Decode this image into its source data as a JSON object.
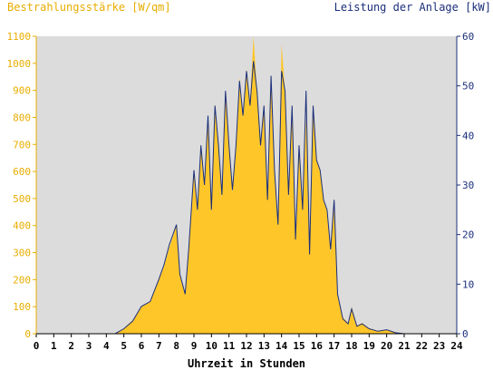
{
  "chart_data": {
    "type": "area",
    "ylabel_left": "Bestrahlungsstärke [W/qm]",
    "ylabel_right": "Leistung der Anlage [kW]",
    "xlabel": "Uhrzeit in Stunden",
    "xlim": [
      0,
      24
    ],
    "ylim_left": [
      0,
      1100
    ],
    "ylim_right": [
      0,
      60
    ],
    "x_ticks": [
      "0",
      "1",
      "2",
      "3",
      "4",
      "5",
      "6",
      "7",
      "8",
      "9",
      "10",
      "11",
      "12",
      "13",
      "14",
      "15",
      "16",
      "17",
      "18",
      "19",
      "20",
      "21",
      "22",
      "23",
      "24"
    ],
    "y_left_ticks": [
      "0",
      "100",
      "200",
      "300",
      "400",
      "500",
      "600",
      "700",
      "800",
      "900",
      "1000",
      "1100"
    ],
    "y_right_ticks": [
      "0",
      "10",
      "20",
      "30",
      "40",
      "50",
      "60"
    ],
    "grid": false,
    "colors": {
      "irradiance": "#ffc629",
      "power": "#1b2f7a",
      "plot_bg": "#dcdcdc",
      "left_axis_text": "#e8ad00",
      "right_axis_text": "#1b2f7a"
    },
    "series": [
      {
        "name": "Bestrahlungsstärke [W/qm]",
        "axis": "left",
        "x": [
          0,
          4.5,
          5.0,
          5.5,
          6.0,
          6.5,
          7.0,
          7.3,
          7.6,
          8.0,
          8.2,
          8.5,
          8.7,
          9.0,
          9.2,
          9.4,
          9.6,
          9.8,
          10.0,
          10.2,
          10.4,
          10.6,
          10.8,
          11.0,
          11.2,
          11.4,
          11.6,
          11.8,
          12.0,
          12.2,
          12.4,
          12.6,
          12.8,
          13.0,
          13.2,
          13.4,
          13.6,
          13.8,
          14.0,
          14.2,
          14.4,
          14.6,
          14.8,
          15.0,
          15.2,
          15.4,
          15.6,
          15.8,
          16.0,
          16.2,
          16.4,
          16.6,
          16.8,
          17.0,
          17.2,
          17.5,
          17.8,
          18.0,
          18.3,
          18.6,
          19.0,
          19.5,
          20.0,
          20.5,
          21.0,
          24.0
        ],
        "values": [
          0,
          0,
          20,
          50,
          100,
          120,
          200,
          250,
          320,
          400,
          220,
          150,
          300,
          600,
          450,
          700,
          550,
          800,
          450,
          850,
          700,
          500,
          900,
          700,
          520,
          700,
          950,
          800,
          980,
          850,
          1100,
          900,
          700,
          850,
          500,
          950,
          600,
          400,
          1070,
          900,
          500,
          850,
          350,
          700,
          450,
          800,
          300,
          850,
          650,
          600,
          500,
          450,
          300,
          500,
          150,
          60,
          40,
          100,
          30,
          40,
          20,
          10,
          15,
          5,
          0,
          0
        ]
      },
      {
        "name": "Leistung der Anlage [kW]",
        "axis": "right",
        "x": [
          0,
          4.5,
          5.0,
          5.5,
          6.0,
          6.5,
          7.0,
          7.3,
          7.6,
          8.0,
          8.2,
          8.5,
          8.7,
          9.0,
          9.2,
          9.4,
          9.6,
          9.8,
          10.0,
          10.2,
          10.4,
          10.6,
          10.8,
          11.0,
          11.2,
          11.4,
          11.6,
          11.8,
          12.0,
          12.2,
          12.4,
          12.6,
          12.8,
          13.0,
          13.2,
          13.4,
          13.6,
          13.8,
          14.0,
          14.2,
          14.4,
          14.6,
          14.8,
          15.0,
          15.2,
          15.4,
          15.6,
          15.8,
          16.0,
          16.2,
          16.4,
          16.6,
          16.8,
          17.0,
          17.2,
          17.5,
          17.8,
          18.0,
          18.3,
          18.6,
          19.0,
          19.5,
          20.0,
          20.5,
          21.0,
          24.0
        ],
        "values": [
          0,
          0,
          1.0,
          2.5,
          5.5,
          6.5,
          11,
          14,
          18,
          22,
          12,
          8,
          17,
          33,
          25,
          38,
          30,
          44,
          25,
          46,
          38,
          28,
          49,
          38,
          29,
          38,
          51,
          44,
          53,
          46,
          55,
          49,
          38,
          46,
          27,
          52,
          33,
          22,
          53,
          49,
          28,
          46,
          19,
          38,
          25,
          49,
          16,
          46,
          35,
          33,
          27,
          25,
          17,
          27,
          8,
          3,
          2,
          5,
          1.5,
          2,
          1,
          0.5,
          0.8,
          0.2,
          0,
          0
        ]
      }
    ]
  }
}
